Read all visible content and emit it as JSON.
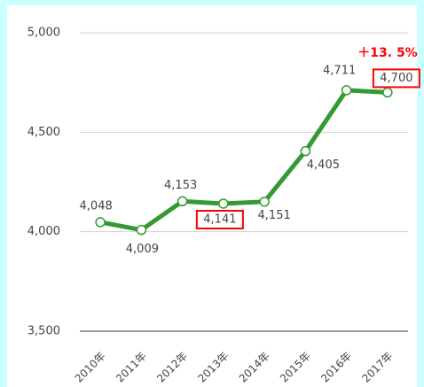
{
  "chart_data": {
    "type": "line",
    "categories": [
      "2010年",
      "2011年",
      "2012年",
      "2013年",
      "2014年",
      "2015年",
      "2016年",
      "2017年"
    ],
    "series": [
      {
        "color": "#339933",
        "values": [
          4048,
          4009,
          4153,
          4141,
          4151,
          4405,
          4711,
          4700
        ],
        "value_labels": [
          "4,048",
          "4,009",
          "4,153",
          "4,141",
          "4,151",
          "4,405",
          "4,711",
          "4,700"
        ]
      }
    ],
    "ylim": [
      3500,
      5000
    ],
    "yticks": [
      {
        "value": 3500,
        "label": "3,500"
      },
      {
        "value": 4000,
        "label": "4,000"
      },
      {
        "value": 4500,
        "label": "4,500"
      },
      {
        "value": 5000,
        "label": "5,000"
      }
    ],
    "grid": true,
    "annotations": [
      "＋13. 5%"
    ]
  }
}
